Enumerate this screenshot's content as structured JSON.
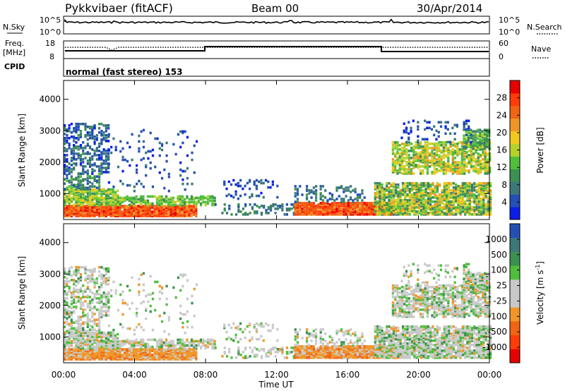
{
  "header": {
    "station": "Pykkvibaer (fitACF)",
    "beam": "Beam 00",
    "date": "30/Apr/2014"
  },
  "panels": {
    "nsky": {
      "left_label": "N.Sky",
      "left_ticks": [
        "10^5",
        "10^0"
      ],
      "right_ticks": [
        "10^5",
        "10^0"
      ],
      "right_label": "N.Search"
    },
    "freq": {
      "left_label": "Freq.",
      "left_unit": "[MHz]",
      "left_ticks": [
        "18",
        "8"
      ],
      "right_ticks": [
        "60",
        "0"
      ],
      "right_label": "Nave"
    },
    "cpid": {
      "label": "CPID",
      "mode": "normal (fast stereo) 153"
    }
  },
  "colors": {
    "power": [
      "#0a1ee6",
      "#2450b4",
      "#3c7878",
      "#3c9050",
      "#50be3c",
      "#b4d228",
      "#f0c81e",
      "#f09628",
      "#f06414",
      "#ff3c0a",
      "#e60000"
    ],
    "velocity": [
      "#e60000",
      "#ff3c0a",
      "#f06414",
      "#f09628",
      "#c8c8c8",
      "#c8c8c8",
      "#50be3c",
      "#3c9050",
      "#3c7878",
      "#2450b4"
    ]
  },
  "chart_data": [
    {
      "type": "heatmap",
      "name": "power",
      "ylabel": "Slant Range [km]",
      "y_ticks": [
        "1000",
        "2000",
        "3000",
        "4000"
      ],
      "ylim": [
        180,
        4600
      ],
      "x_ticks": [
        "00:00",
        "04:00",
        "08:00",
        "12:00",
        "16:00",
        "20:00",
        "00:00"
      ],
      "xlim": [
        0,
        24
      ],
      "colorbar_label": "Power [dB]",
      "colorbar_ticks": [
        "4",
        "8",
        "12",
        "16",
        "20",
        "24",
        "28"
      ],
      "colorbar_range": [
        0,
        32
      ]
    },
    {
      "type": "heatmap",
      "name": "velocity",
      "ylabel": "Slant Range [km]",
      "y_ticks": [
        "1000",
        "2000",
        "3000",
        "4000"
      ],
      "ylim": [
        180,
        4600
      ],
      "x_ticks": [
        "00:00",
        "04:00",
        "08:00",
        "12:00",
        "16:00",
        "20:00",
        "00:00"
      ],
      "xlim": [
        0,
        24
      ],
      "xlabel": "Time UT",
      "colorbar_label": "Velocity [m s",
      "colorbar_label_sup": "-1",
      "colorbar_ticks": [
        "1000",
        "500",
        "100",
        "25",
        "-25",
        "-100",
        "-500",
        "-1000"
      ]
    }
  ]
}
